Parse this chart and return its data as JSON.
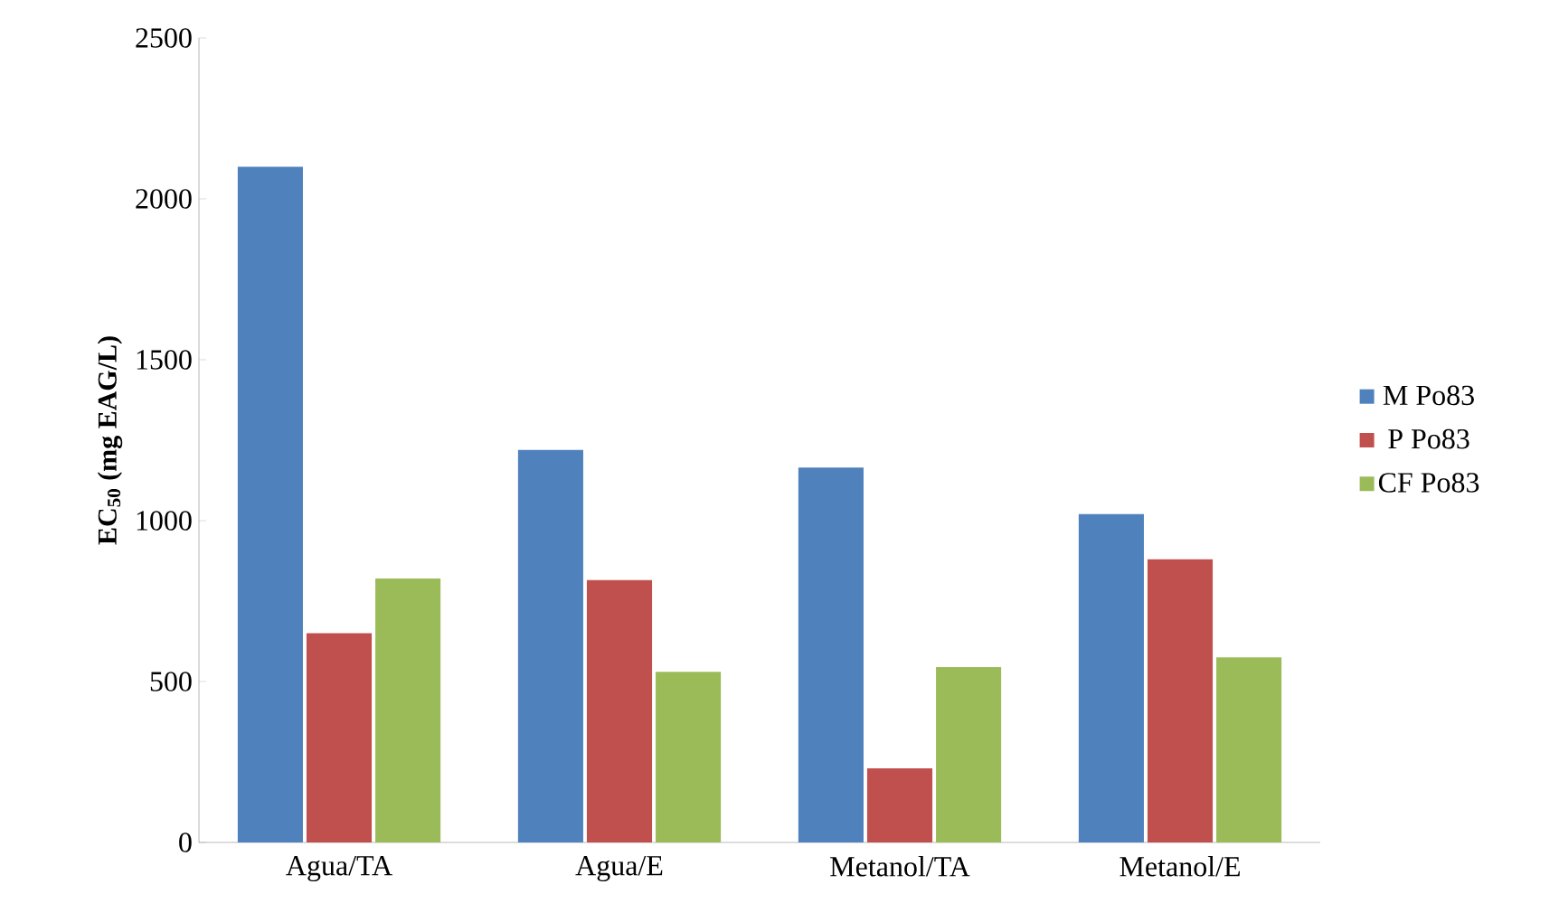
{
  "chart_data": {
    "type": "bar",
    "ylabel": "**EC$_{50}$ (mg EAG/L)**",
    "categories": [
      "Agua/TA",
      "Agua/E",
      "Metanol/TA",
      "Metanol/E"
    ],
    "series": [
      {
        "name": "M Po83",
        "color": "#4f81bd",
        "values": [
          2100,
          1220,
          1165,
          1020
        ]
      },
      {
        "name": "P Po83",
        "color": "#c0504d",
        "values": [
          650,
          815,
          230,
          880
        ]
      },
      {
        "name": "CF Po83",
        "color": "#9bbb59",
        "values": [
          820,
          530,
          545,
          575
        ]
      }
    ],
    "ylim": [
      0,
      2500
    ],
    "yticks": [
      0,
      500,
      1000,
      1500,
      2000,
      2500
    ],
    "grid": false,
    "legend": "right"
  }
}
